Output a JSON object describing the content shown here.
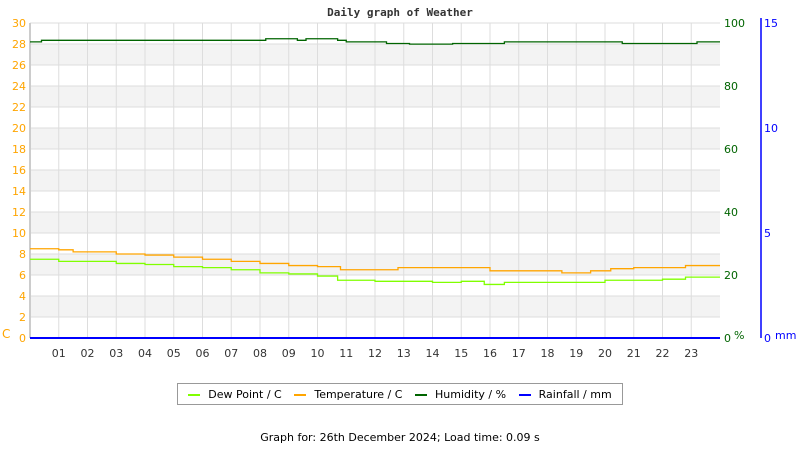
{
  "chart_data": {
    "type": "line",
    "title": "Daily graph of Weather",
    "x_ticks": [
      "01",
      "02",
      "03",
      "04",
      "05",
      "06",
      "07",
      "08",
      "09",
      "10",
      "11",
      "12",
      "13",
      "14",
      "15",
      "16",
      "17",
      "18",
      "19",
      "20",
      "21",
      "22",
      "23"
    ],
    "xlim": [
      0,
      24
    ],
    "grid": true,
    "legend_placement": "bottom",
    "axes": {
      "left": {
        "unit": "C",
        "ylim": [
          0,
          30
        ],
        "ticks": [
          0,
          2,
          4,
          6,
          8,
          10,
          12,
          14,
          16,
          18,
          20,
          22,
          24,
          26,
          28,
          30
        ],
        "color": "#ffa500"
      },
      "right1": {
        "unit": "%",
        "ylim": [
          0,
          100
        ],
        "ticks": [
          0,
          20,
          40,
          60,
          80,
          100
        ],
        "color": "#006400"
      },
      "right2": {
        "unit": "mm",
        "ylim": [
          0,
          15
        ],
        "ticks": [
          0,
          5,
          10,
          15
        ],
        "color": "#0000ff"
      }
    },
    "series": [
      {
        "name": "Dew Point / C",
        "axis": "left",
        "color": "#80ff00",
        "x": [
          0,
          1,
          2,
          3,
          4,
          5,
          6,
          7,
          8,
          9,
          10,
          10.7,
          12,
          13,
          14,
          15,
          15.8,
          16.5,
          17,
          18,
          19,
          20,
          21,
          22,
          22.8,
          24
        ],
        "values": [
          7.5,
          7.3,
          7.3,
          7.1,
          7.0,
          6.8,
          6.7,
          6.5,
          6.2,
          6.1,
          5.9,
          5.5,
          5.4,
          5.4,
          5.3,
          5.4,
          5.1,
          5.3,
          5.3,
          5.3,
          5.3,
          5.5,
          5.5,
          5.6,
          5.8,
          5.8
        ]
      },
      {
        "name": "Temperature / C",
        "axis": "left",
        "color": "#ffa500",
        "x": [
          0,
          1,
          1.5,
          3,
          4,
          5,
          6,
          7,
          8,
          9,
          10,
          10.8,
          12,
          12.8,
          15.5,
          16,
          18,
          18.5,
          19.5,
          20.2,
          21,
          22.8,
          24
        ],
        "values": [
          8.5,
          8.4,
          8.2,
          8.0,
          7.9,
          7.7,
          7.5,
          7.3,
          7.1,
          6.9,
          6.8,
          6.5,
          6.5,
          6.7,
          6.7,
          6.4,
          6.4,
          6.2,
          6.4,
          6.6,
          6.7,
          6.9,
          6.9
        ]
      },
      {
        "name": "Humidity / %",
        "axis": "right1",
        "color": "#006400",
        "x": [
          0,
          0.4,
          1,
          3,
          8.2,
          9.3,
          9.6,
          10.7,
          11,
          12.4,
          13.2,
          14.7,
          15.7,
          16.5,
          20.6,
          23.2,
          24
        ],
        "values": [
          94,
          94.5,
          94.5,
          94.5,
          95,
          94.5,
          95,
          94.5,
          94,
          93.5,
          93.3,
          93.5,
          93.5,
          94,
          93.5,
          94,
          94
        ]
      },
      {
        "name": "Rainfall / mm",
        "axis": "right2",
        "color": "#0000ff",
        "x": [
          0,
          24
        ],
        "values": [
          0,
          0
        ]
      }
    ]
  },
  "footer": "Graph for: 26th December 2024; Load time: 0.09 s"
}
